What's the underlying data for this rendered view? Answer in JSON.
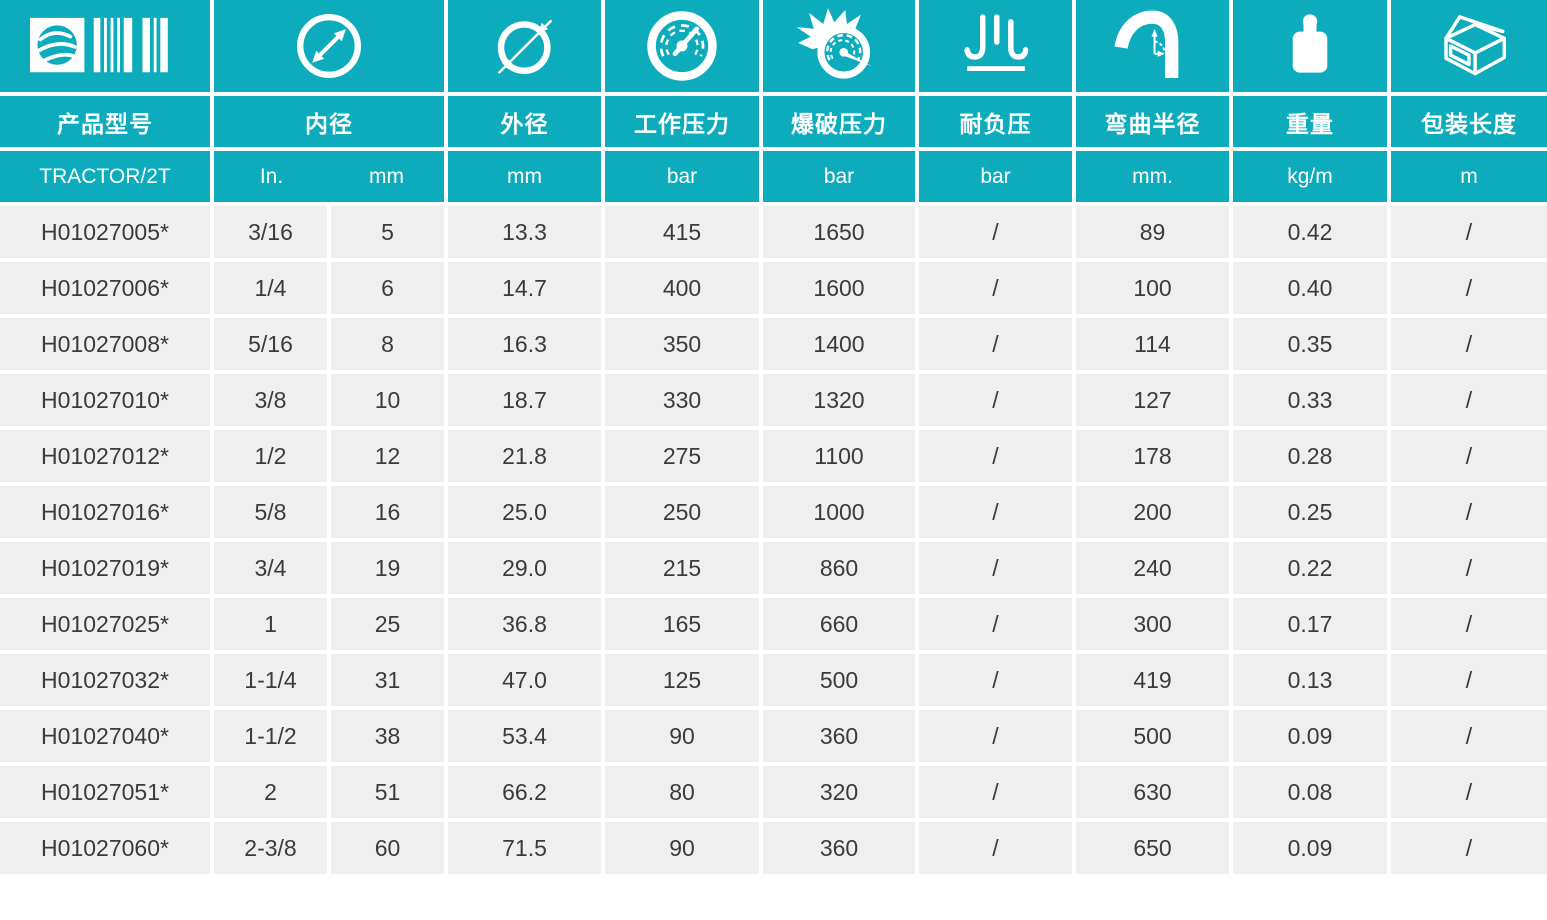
{
  "theme": {
    "teal": "#0dacbc",
    "row_bg": "#efefef",
    "text": "#3b3b3b",
    "grid_line": "#ffffff"
  },
  "columns": [
    {
      "key": "model",
      "icon": "logo-barcode-icon",
      "label": "产品型号",
      "unit": "TRACTOR/2T"
    },
    {
      "key": "inner_diameter",
      "icon": "inner-diameter-icon",
      "label": "内径",
      "units": [
        "In.",
        "mm"
      ]
    },
    {
      "key": "outer_diameter",
      "icon": "outer-diameter-icon",
      "label": "外径",
      "unit": "mm"
    },
    {
      "key": "working_pressure",
      "icon": "working-pressure-gauge-icon",
      "label": "工作压力",
      "unit": "bar"
    },
    {
      "key": "burst_pressure",
      "icon": "burst-pressure-icon",
      "label": "爆破压力",
      "unit": "bar"
    },
    {
      "key": "vacuum",
      "icon": "vacuum-resistance-icon",
      "label": "耐负压",
      "unit": "bar"
    },
    {
      "key": "bend_radius",
      "icon": "bend-radius-icon",
      "label": "弯曲半径",
      "unit": "mm."
    },
    {
      "key": "weight",
      "icon": "weight-icon",
      "label": "重量",
      "unit": "kg/m"
    },
    {
      "key": "package_length",
      "icon": "package-box-icon",
      "label": "包装长度",
      "unit": "m"
    }
  ],
  "rows": [
    [
      "H01027005*",
      "3/16",
      "5",
      "13.3",
      "415",
      "1650",
      "/",
      "89",
      "0.42",
      "/"
    ],
    [
      "H01027006*",
      "1/4",
      "6",
      "14.7",
      "400",
      "1600",
      "/",
      "100",
      "0.40",
      "/"
    ],
    [
      "H01027008*",
      "5/16",
      "8",
      "16.3",
      "350",
      "1400",
      "/",
      "114",
      "0.35",
      "/"
    ],
    [
      "H01027010*",
      "3/8",
      "10",
      "18.7",
      "330",
      "1320",
      "/",
      "127",
      "0.33",
      "/"
    ],
    [
      "H01027012*",
      "1/2",
      "12",
      "21.8",
      "275",
      "1100",
      "/",
      "178",
      "0.28",
      "/"
    ],
    [
      "H01027016*",
      "5/8",
      "16",
      "25.0",
      "250",
      "1000",
      "/",
      "200",
      "0.25",
      "/"
    ],
    [
      "H01027019*",
      "3/4",
      "19",
      "29.0",
      "215",
      "860",
      "/",
      "240",
      "0.22",
      "/"
    ],
    [
      "H01027025*",
      "1",
      "25",
      "36.8",
      "165",
      "660",
      "/",
      "300",
      "0.17",
      "/"
    ],
    [
      "H01027032*",
      "1-1/4",
      "31",
      "47.0",
      "125",
      "500",
      "/",
      "419",
      "0.13",
      "/"
    ],
    [
      "H01027040*",
      "1-1/2",
      "38",
      "53.4",
      "90",
      "360",
      "/",
      "500",
      "0.09",
      "/"
    ],
    [
      "H01027051*",
      "2",
      "51",
      "66.2",
      "80",
      "320",
      "/",
      "630",
      "0.08",
      "/"
    ],
    [
      "H01027060*",
      "2-3/8",
      "60",
      "71.5",
      "90",
      "360",
      "/",
      "650",
      "0.09",
      "/"
    ]
  ]
}
